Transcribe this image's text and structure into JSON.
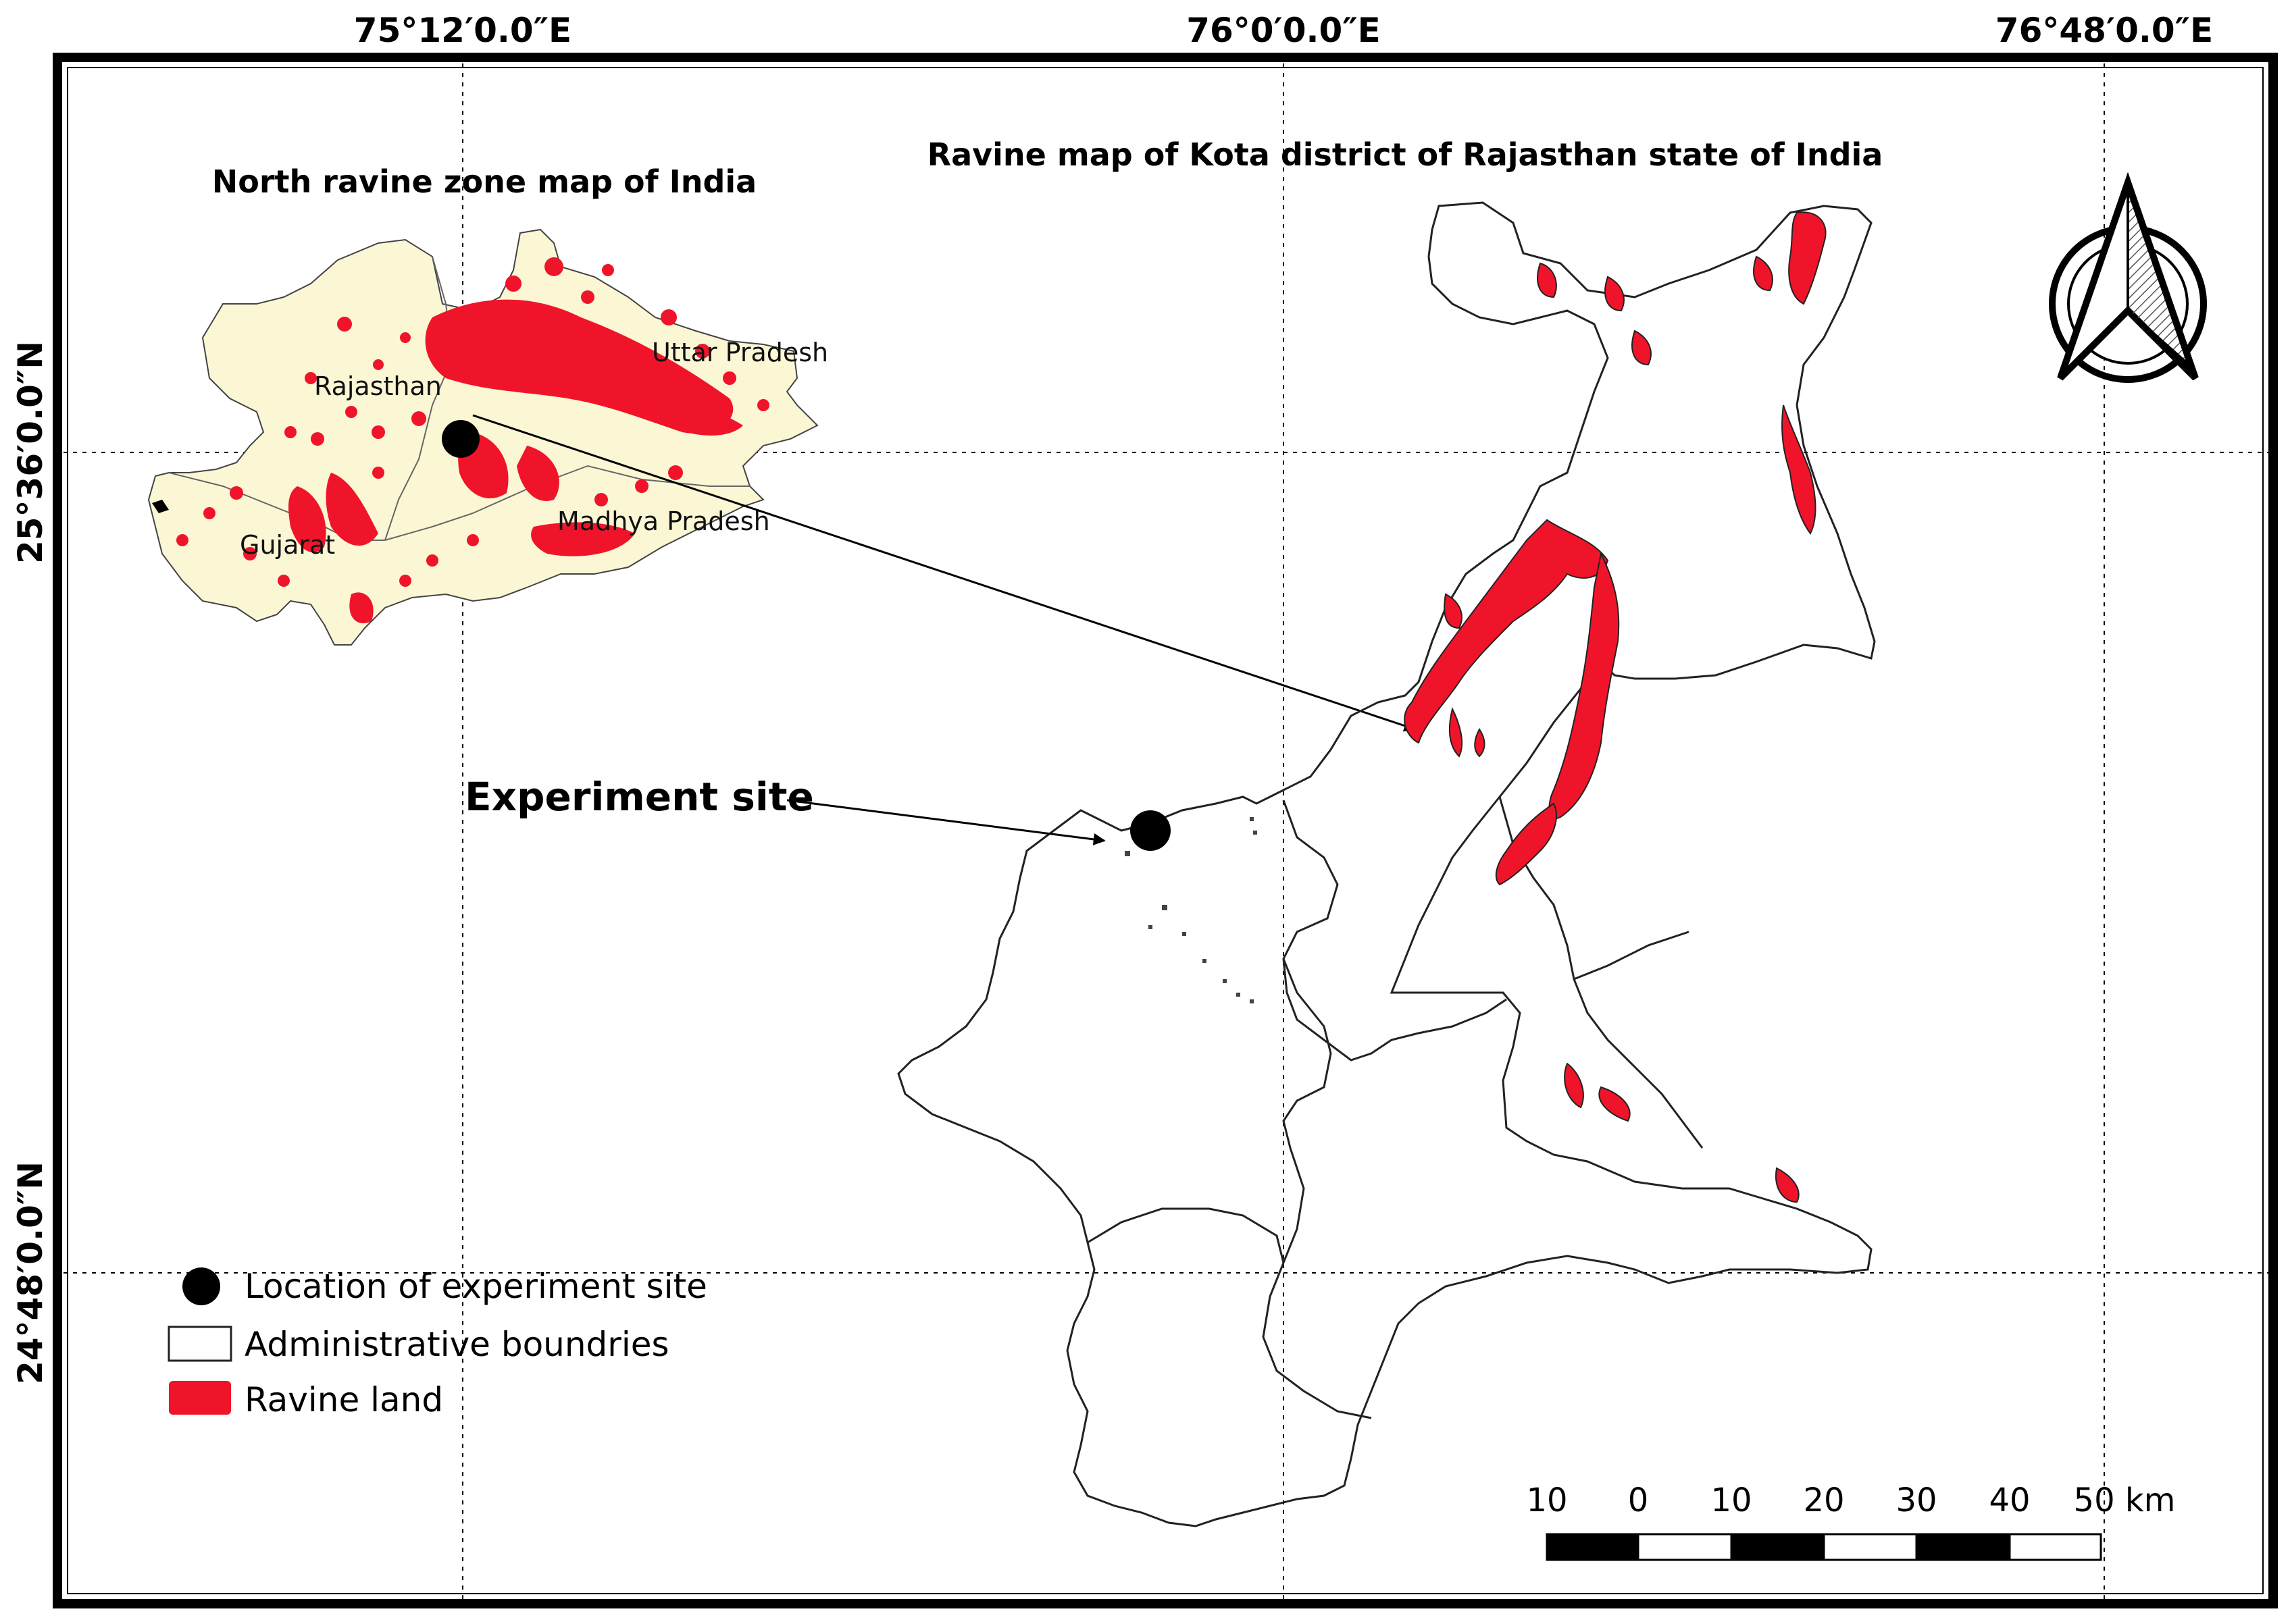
{
  "graticule": {
    "lon_labels": [
      "75°12′0.0″E",
      "76°0′0.0″E",
      "76°48′0.0″E"
    ],
    "lat_labels": [
      "25°36′0.0″N",
      "24°48′0.0″N"
    ]
  },
  "inset_map": {
    "title": "North ravine zone map of India",
    "states": [
      "Rajasthan",
      "Uttar Pradesh",
      "Gujarat",
      "Madhya Pradesh"
    ]
  },
  "main_map": {
    "title": "Ravine map of Kota district of Rajasthan state of India",
    "site_label": "Experiment site"
  },
  "legend": {
    "items": [
      {
        "symbol": "black-dot",
        "label": "Location of experiment site"
      },
      {
        "symbol": "white-box",
        "label": "Administrative boundries"
      },
      {
        "symbol": "red-box",
        "label": "Ravine land"
      }
    ]
  },
  "scale_bar": {
    "ticks": [
      "10",
      "0",
      "10",
      "20",
      "30",
      "40",
      "50 km"
    ]
  },
  "north_arrow": {
    "icon": "north-arrow-icon"
  },
  "colors": {
    "ravine": "#f0142a",
    "inset_fill": "#fbf7d5",
    "border": "#222222"
  }
}
